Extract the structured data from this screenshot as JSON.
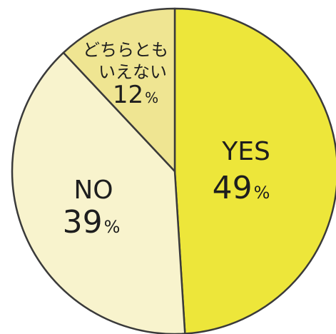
{
  "chart_data": {
    "type": "pie",
    "categories": [
      "YES",
      "NO",
      "どちらともいえない"
    ],
    "values": [
      49,
      39,
      12
    ],
    "value_suffix": "%",
    "colors": [
      "#ede63a",
      "#f8f3cd",
      "#efe592"
    ],
    "slices": [
      {
        "label": "YES",
        "value": 49,
        "value_text": "49",
        "unit": "%",
        "color": "#ede63a"
      },
      {
        "label": "NO",
        "value": 39,
        "value_text": "39",
        "unit": "%",
        "color": "#f8f3cd"
      },
      {
        "label_lines": [
          "どちらとも",
          "いえない"
        ],
        "value": 12,
        "value_text": "12",
        "unit": "%",
        "color": "#efe592"
      }
    ],
    "start_angle": "12 o'clock",
    "direction": "clockwise",
    "outline_color": "#3a3a3a"
  }
}
